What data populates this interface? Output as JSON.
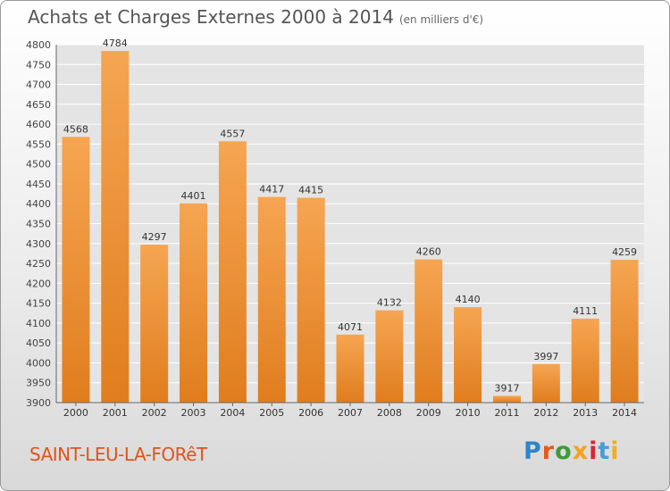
{
  "colors": {
    "bar_light": "#f6a552",
    "bar_dark": "#e07d1e",
    "city": "#e0541a",
    "logo": [
      "#2e86c8",
      "#e8581c",
      "#3d9c3a",
      "#f4a21b",
      "#d8282e",
      "#4c9bd6",
      "#f0b020"
    ]
  },
  "title": "Achats et Charges Externes 2000 à 2014",
  "subtitle": "(en milliers d'€)",
  "city": "SAINT-LEU-LA-FORêT",
  "logo_text": "Proxiti",
  "chart_data": {
    "type": "bar",
    "title": "Achats et Charges Externes 2000 à 2014",
    "subtitle": "(en milliers d'€)",
    "categories": [
      "2000",
      "2001",
      "2002",
      "2003",
      "2004",
      "2005",
      "2006",
      "2007",
      "2008",
      "2009",
      "2010",
      "2011",
      "2012",
      "2013",
      "2014"
    ],
    "values": [
      4568,
      4784,
      4297,
      4401,
      4557,
      4417,
      4415,
      4071,
      4132,
      4260,
      4140,
      3917,
      3997,
      4111,
      4259
    ],
    "ylim": [
      3900,
      4800
    ],
    "yticks": [
      3900,
      3950,
      4000,
      4050,
      4100,
      4150,
      4200,
      4250,
      4300,
      4350,
      4400,
      4450,
      4500,
      4550,
      4600,
      4650,
      4700,
      4750,
      4800
    ],
    "grid": true,
    "xlabel": "",
    "ylabel": ""
  }
}
